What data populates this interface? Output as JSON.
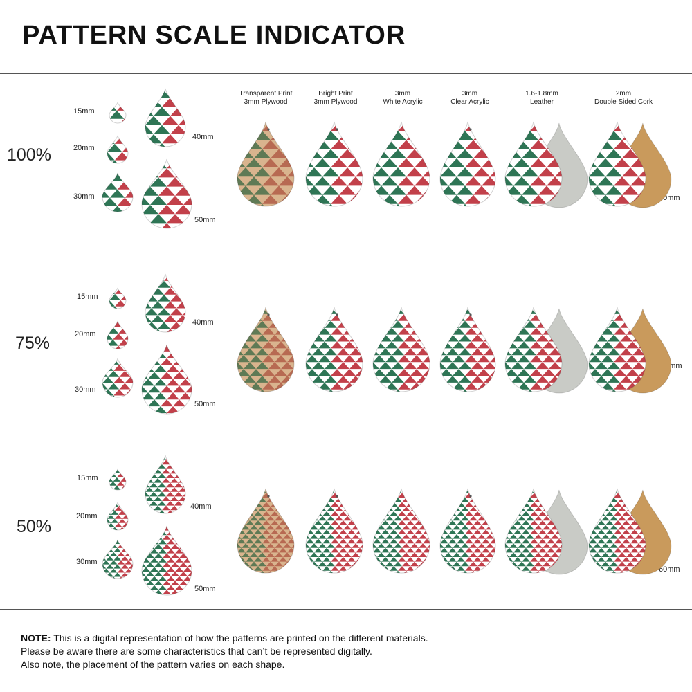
{
  "title": "PATTERN SCALE INDICATOR",
  "colors": {
    "green": "#2e7555",
    "red": "#c2404a",
    "white": "#ffffff",
    "wood": "#d9b48e",
    "cork": "#c99a5c",
    "leather_back": "#c9cbc6"
  },
  "columns": [
    {
      "line1": "Transparent Print",
      "line2": "3mm Plywood"
    },
    {
      "line1": "Bright Print",
      "line2": "3mm Plywood"
    },
    {
      "line1": "3mm",
      "line2": "White Acrylic"
    },
    {
      "line1": "3mm",
      "line2": "Clear Acrylic"
    },
    {
      "line1": "1.6-1.8mm",
      "line2": "Leather"
    },
    {
      "line1": "2mm",
      "line2": "Double Sided Cork"
    }
  ],
  "rows": [
    {
      "scale": "100%",
      "sizes": [
        "15mm",
        "20mm",
        "30mm",
        "40mm",
        "50mm"
      ],
      "big": "60mm"
    },
    {
      "scale": "75%",
      "sizes": [
        "15mm",
        "20mm",
        "30mm",
        "40mm",
        "50mm"
      ],
      "big": "60mm"
    },
    {
      "scale": "50%",
      "sizes": [
        "15mm",
        "20mm",
        "30mm",
        "40mm",
        "50mm"
      ],
      "big": "60mm"
    }
  ],
  "note": {
    "label": "NOTE:",
    "line1": "This is a digital representation of how the patterns are printed on the different materials.",
    "line2": "Please be aware there are some characteristics that can’t be represented digitally.",
    "line3": "Also note, the placement of the pattern varies on each shape."
  }
}
